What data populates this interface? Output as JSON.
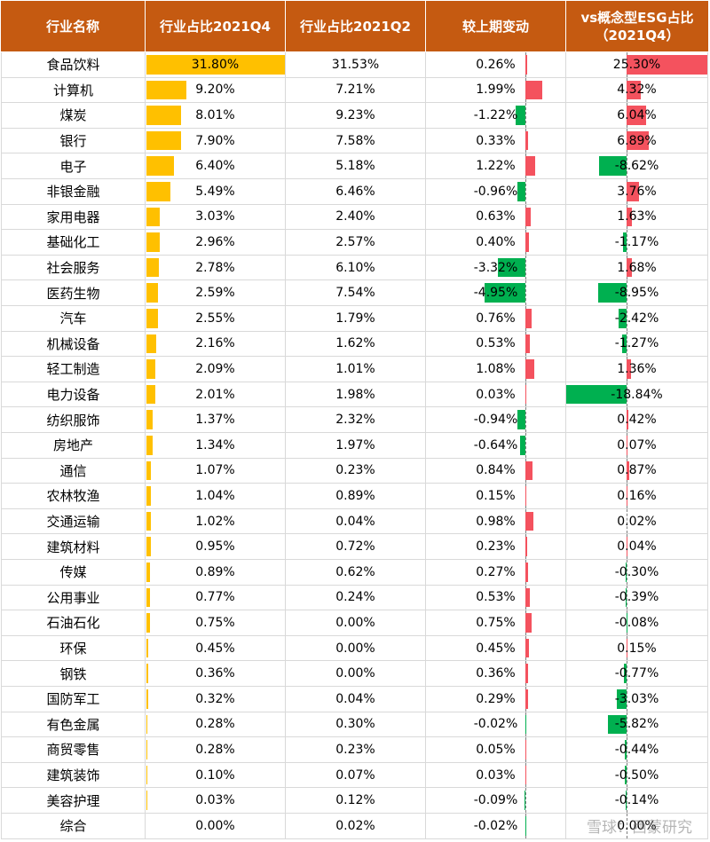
{
  "chart_data": {
    "type": "table",
    "columns": [
      "行业名称",
      "行业占比2021Q4",
      "行业占比2021Q2",
      "较上期变动",
      "vs概念型ESG占比\n（2021Q4）"
    ],
    "rows": [
      {
        "name": "食品饮料",
        "q4": 31.8,
        "q2": 31.53,
        "chg": 0.26,
        "vs": 25.3
      },
      {
        "name": "计算机",
        "q4": 9.2,
        "q2": 7.21,
        "chg": 1.99,
        "vs": 4.32
      },
      {
        "name": "煤炭",
        "q4": 8.01,
        "q2": 9.23,
        "chg": -1.22,
        "vs": 6.04
      },
      {
        "name": "银行",
        "q4": 7.9,
        "q2": 7.58,
        "chg": 0.33,
        "vs": 6.89
      },
      {
        "name": "电子",
        "q4": 6.4,
        "q2": 5.18,
        "chg": 1.22,
        "vs": -8.62
      },
      {
        "name": "非银金融",
        "q4": 5.49,
        "q2": 6.46,
        "chg": -0.96,
        "vs": 3.76
      },
      {
        "name": "家用电器",
        "q4": 3.03,
        "q2": 2.4,
        "chg": 0.63,
        "vs": 1.63
      },
      {
        "name": "基础化工",
        "q4": 2.96,
        "q2": 2.57,
        "chg": 0.4,
        "vs": -1.17
      },
      {
        "name": "社会服务",
        "q4": 2.78,
        "q2": 6.1,
        "chg": -3.32,
        "vs": 1.68
      },
      {
        "name": "医药生物",
        "q4": 2.59,
        "q2": 7.54,
        "chg": -4.95,
        "vs": -8.95
      },
      {
        "name": "汽车",
        "q4": 2.55,
        "q2": 1.79,
        "chg": 0.76,
        "vs": -2.42
      },
      {
        "name": "机械设备",
        "q4": 2.16,
        "q2": 1.62,
        "chg": 0.53,
        "vs": -1.27
      },
      {
        "name": "轻工制造",
        "q4": 2.09,
        "q2": 1.01,
        "chg": 1.08,
        "vs": 1.36
      },
      {
        "name": "电力设备",
        "q4": 2.01,
        "q2": 1.98,
        "chg": 0.03,
        "vs": -18.84
      },
      {
        "name": "纺织服饰",
        "q4": 1.37,
        "q2": 2.32,
        "chg": -0.94,
        "vs": 0.42
      },
      {
        "name": "房地产",
        "q4": 1.34,
        "q2": 1.97,
        "chg": -0.64,
        "vs": 0.07
      },
      {
        "name": "通信",
        "q4": 1.07,
        "q2": 0.23,
        "chg": 0.84,
        "vs": 0.87
      },
      {
        "name": "农林牧渔",
        "q4": 1.04,
        "q2": 0.89,
        "chg": 0.15,
        "vs": 0.16
      },
      {
        "name": "交通运输",
        "q4": 1.02,
        "q2": 0.04,
        "chg": 0.98,
        "vs": 0.02
      },
      {
        "name": "建筑材料",
        "q4": 0.95,
        "q2": 0.72,
        "chg": 0.23,
        "vs": 0.04
      },
      {
        "name": "传媒",
        "q4": 0.89,
        "q2": 0.62,
        "chg": 0.27,
        "vs": -0.3
      },
      {
        "name": "公用事业",
        "q4": 0.77,
        "q2": 0.24,
        "chg": 0.53,
        "vs": -0.39
      },
      {
        "name": "石油石化",
        "q4": 0.75,
        "q2": 0.0,
        "chg": 0.75,
        "vs": -0.08
      },
      {
        "name": "环保",
        "q4": 0.45,
        "q2": 0.0,
        "chg": 0.45,
        "vs": 0.15
      },
      {
        "name": "钢铁",
        "q4": 0.36,
        "q2": 0.0,
        "chg": 0.36,
        "vs": -0.77
      },
      {
        "name": "国防军工",
        "q4": 0.32,
        "q2": 0.04,
        "chg": 0.29,
        "vs": -3.03
      },
      {
        "name": "有色金属",
        "q4": 0.28,
        "q2": 0.3,
        "chg": -0.02,
        "vs": -5.82
      },
      {
        "name": "商贸零售",
        "q4": 0.28,
        "q2": 0.23,
        "chg": 0.05,
        "vs": -0.44
      },
      {
        "name": "建筑装饰",
        "q4": 0.1,
        "q2": 0.07,
        "chg": 0.03,
        "vs": -0.5
      },
      {
        "name": "美容护理",
        "q4": 0.03,
        "q2": 0.12,
        "chg": -0.09,
        "vs": -0.14
      },
      {
        "name": "综合",
        "q4": 0.0,
        "q2": 0.02,
        "chg": -0.02,
        "vs": 0.0
      }
    ],
    "colors": {
      "header": "#c55a11",
      "q4_bar": "#ffc000",
      "positive": "#f4525e",
      "negative": "#00b050"
    }
  },
  "watermark": "雪球：西蒙研究"
}
